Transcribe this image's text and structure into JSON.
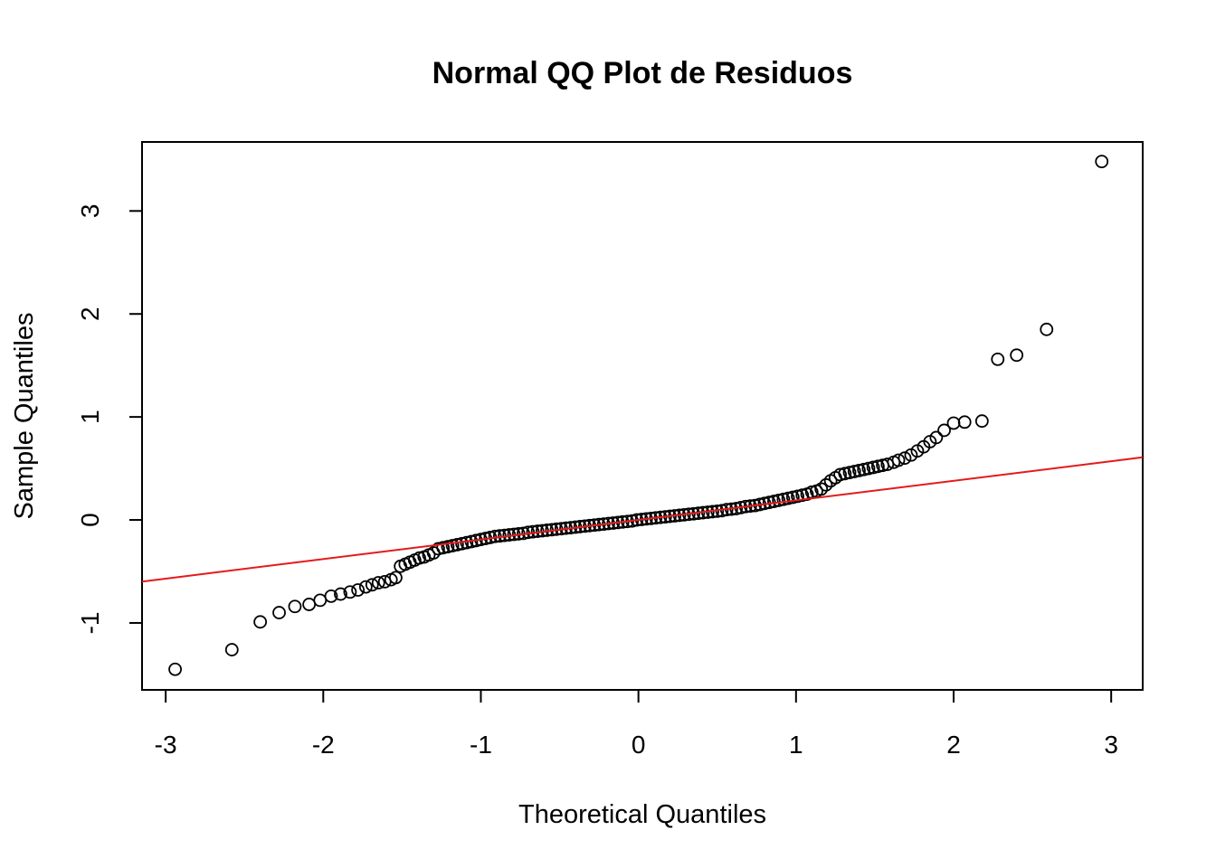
{
  "chart_data": {
    "type": "scatter",
    "title": "Normal QQ Plot de Residuos",
    "xlabel": "Theoretical Quantiles",
    "ylabel": "Sample Quantiles",
    "xlim": [
      -3.15,
      3.2
    ],
    "ylim": [
      -1.65,
      3.67
    ],
    "x_ticks": [
      -3,
      -2,
      -1,
      0,
      1,
      2,
      3
    ],
    "y_ticks": [
      -1,
      0,
      1,
      2,
      3
    ],
    "x_tick_labels": [
      "-3",
      "-2",
      "-1",
      "0",
      "1",
      "2",
      "3"
    ],
    "y_tick_labels": [
      "-1",
      "0",
      "1",
      "2",
      "3"
    ],
    "grid": false,
    "point_color": "#000000",
    "line_color": "#e41a1c",
    "reference_line": {
      "slope": 0.19,
      "intercept": 0.0
    },
    "points": [
      [
        -2.94,
        -1.45
      ],
      [
        -2.58,
        -1.26
      ],
      [
        -2.4,
        -0.99
      ],
      [
        -2.28,
        -0.9
      ],
      [
        -2.18,
        -0.84
      ],
      [
        -2.09,
        -0.82
      ],
      [
        -2.02,
        -0.78
      ],
      [
        -1.95,
        -0.74
      ],
      [
        -1.89,
        -0.72
      ],
      [
        -1.83,
        -0.7
      ],
      [
        -1.78,
        -0.68
      ],
      [
        -1.73,
        -0.65
      ],
      [
        -1.69,
        -0.63
      ],
      [
        -1.65,
        -0.61
      ],
      [
        -1.61,
        -0.6
      ],
      [
        -1.57,
        -0.58
      ],
      [
        -1.54,
        -0.56
      ],
      [
        -1.51,
        -0.45
      ],
      [
        -1.48,
        -0.43
      ],
      [
        -1.45,
        -0.41
      ],
      [
        -1.42,
        -0.39
      ],
      [
        -1.39,
        -0.37
      ],
      [
        -1.36,
        -0.36
      ],
      [
        -1.33,
        -0.34
      ],
      [
        -1.3,
        -0.32
      ],
      [
        -1.27,
        -0.28
      ],
      [
        -1.24,
        -0.27
      ],
      [
        -1.21,
        -0.26
      ],
      [
        -1.18,
        -0.25
      ],
      [
        -1.15,
        -0.24
      ],
      [
        -1.12,
        -0.23
      ],
      [
        -1.09,
        -0.22
      ],
      [
        -1.06,
        -0.21
      ],
      [
        -1.03,
        -0.2
      ],
      [
        -1.0,
        -0.19
      ],
      [
        -0.97,
        -0.18
      ],
      [
        -0.94,
        -0.17
      ],
      [
        -0.91,
        -0.16
      ],
      [
        -0.88,
        -0.155
      ],
      [
        -0.85,
        -0.15
      ],
      [
        -0.82,
        -0.145
      ],
      [
        -0.79,
        -0.14
      ],
      [
        -0.76,
        -0.135
      ],
      [
        -0.73,
        -0.13
      ],
      [
        -0.7,
        -0.12
      ],
      [
        -0.67,
        -0.115
      ],
      [
        -0.64,
        -0.11
      ],
      [
        -0.61,
        -0.105
      ],
      [
        -0.58,
        -0.1
      ],
      [
        -0.55,
        -0.095
      ],
      [
        -0.52,
        -0.09
      ],
      [
        -0.49,
        -0.085
      ],
      [
        -0.46,
        -0.08
      ],
      [
        -0.43,
        -0.075
      ],
      [
        -0.4,
        -0.07
      ],
      [
        -0.37,
        -0.065
      ],
      [
        -0.34,
        -0.06
      ],
      [
        -0.31,
        -0.055
      ],
      [
        -0.28,
        -0.05
      ],
      [
        -0.25,
        -0.045
      ],
      [
        -0.22,
        -0.04
      ],
      [
        -0.19,
        -0.035
      ],
      [
        -0.16,
        -0.03
      ],
      [
        -0.13,
        -0.025
      ],
      [
        -0.1,
        -0.02
      ],
      [
        -0.07,
        -0.015
      ],
      [
        -0.04,
        -0.01
      ],
      [
        -0.01,
        0.0
      ],
      [
        0.02,
        0.005
      ],
      [
        0.05,
        0.01
      ],
      [
        0.08,
        0.015
      ],
      [
        0.11,
        0.02
      ],
      [
        0.14,
        0.025
      ],
      [
        0.17,
        0.03
      ],
      [
        0.2,
        0.035
      ],
      [
        0.23,
        0.04
      ],
      [
        0.26,
        0.045
      ],
      [
        0.29,
        0.05
      ],
      [
        0.32,
        0.055
      ],
      [
        0.35,
        0.06
      ],
      [
        0.38,
        0.065
      ],
      [
        0.41,
        0.07
      ],
      [
        0.44,
        0.075
      ],
      [
        0.47,
        0.08
      ],
      [
        0.5,
        0.085
      ],
      [
        0.53,
        0.09
      ],
      [
        0.56,
        0.1
      ],
      [
        0.59,
        0.105
      ],
      [
        0.62,
        0.11
      ],
      [
        0.65,
        0.12
      ],
      [
        0.68,
        0.13
      ],
      [
        0.71,
        0.135
      ],
      [
        0.74,
        0.14
      ],
      [
        0.77,
        0.15
      ],
      [
        0.8,
        0.16
      ],
      [
        0.83,
        0.17
      ],
      [
        0.86,
        0.18
      ],
      [
        0.89,
        0.19
      ],
      [
        0.92,
        0.2
      ],
      [
        0.95,
        0.21
      ],
      [
        0.98,
        0.22
      ],
      [
        1.01,
        0.23
      ],
      [
        1.04,
        0.24
      ],
      [
        1.07,
        0.25
      ],
      [
        1.1,
        0.27
      ],
      [
        1.13,
        0.28
      ],
      [
        1.16,
        0.3
      ],
      [
        1.19,
        0.34
      ],
      [
        1.22,
        0.38
      ],
      [
        1.25,
        0.41
      ],
      [
        1.28,
        0.44
      ],
      [
        1.31,
        0.45
      ],
      [
        1.34,
        0.46
      ],
      [
        1.37,
        0.47
      ],
      [
        1.4,
        0.48
      ],
      [
        1.43,
        0.49
      ],
      [
        1.46,
        0.5
      ],
      [
        1.49,
        0.51
      ],
      [
        1.52,
        0.52
      ],
      [
        1.55,
        0.53
      ],
      [
        1.58,
        0.54
      ],
      [
        1.62,
        0.56
      ],
      [
        1.65,
        0.58
      ],
      [
        1.69,
        0.6
      ],
      [
        1.73,
        0.63
      ],
      [
        1.77,
        0.67
      ],
      [
        1.81,
        0.71
      ],
      [
        1.85,
        0.76
      ],
      [
        1.89,
        0.8
      ],
      [
        1.94,
        0.87
      ],
      [
        2.0,
        0.94
      ],
      [
        2.07,
        0.95
      ],
      [
        2.18,
        0.96
      ],
      [
        2.28,
        1.56
      ],
      [
        2.4,
        1.6
      ],
      [
        2.59,
        1.85
      ],
      [
        2.94,
        3.48
      ]
    ]
  }
}
